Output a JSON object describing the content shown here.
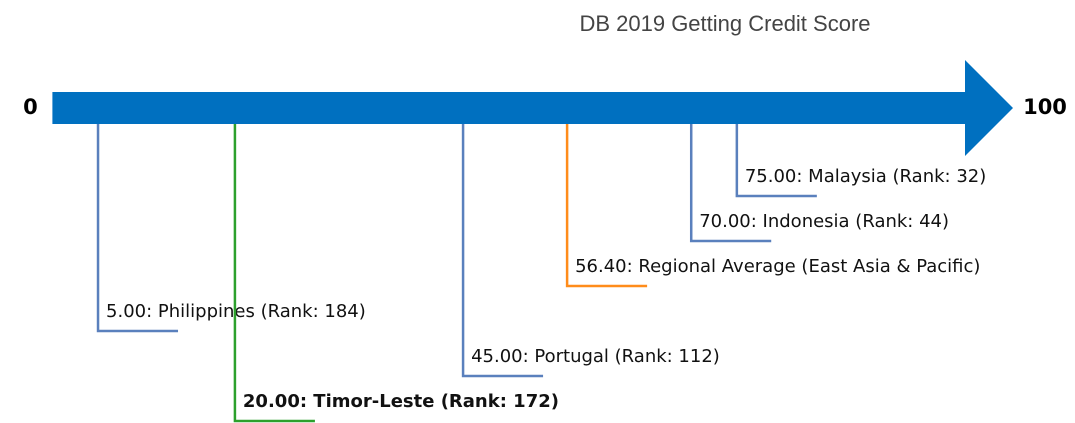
{
  "chart_data": {
    "type": "number-line",
    "title": "DB 2019 Getting Credit Score",
    "xlim": [
      0,
      100
    ],
    "xticks": [
      0,
      100
    ],
    "axis_color": "#0070c0",
    "values": [
      5,
      20,
      45,
      56.4,
      70,
      75
    ],
    "value_labels": [
      "5.00: Philippines (Rank: 184)",
      "20.00: Timor-Leste (Rank: 172)",
      "45.00: Portugal (Rank: 112)",
      "56.40: Regional Average (East Asia & Pacific)",
      "70.00: Indonesia (Rank: 44)",
      "75.00: Malaysia (Rank: 32)"
    ],
    "colors": [
      "#5a80bd",
      "#2ca02c",
      "#5a80bd",
      "#ff8c1a",
      "#5a80bd",
      "#5a80bd"
    ],
    "bold": [
      false,
      true,
      false,
      false,
      false,
      false
    ]
  }
}
